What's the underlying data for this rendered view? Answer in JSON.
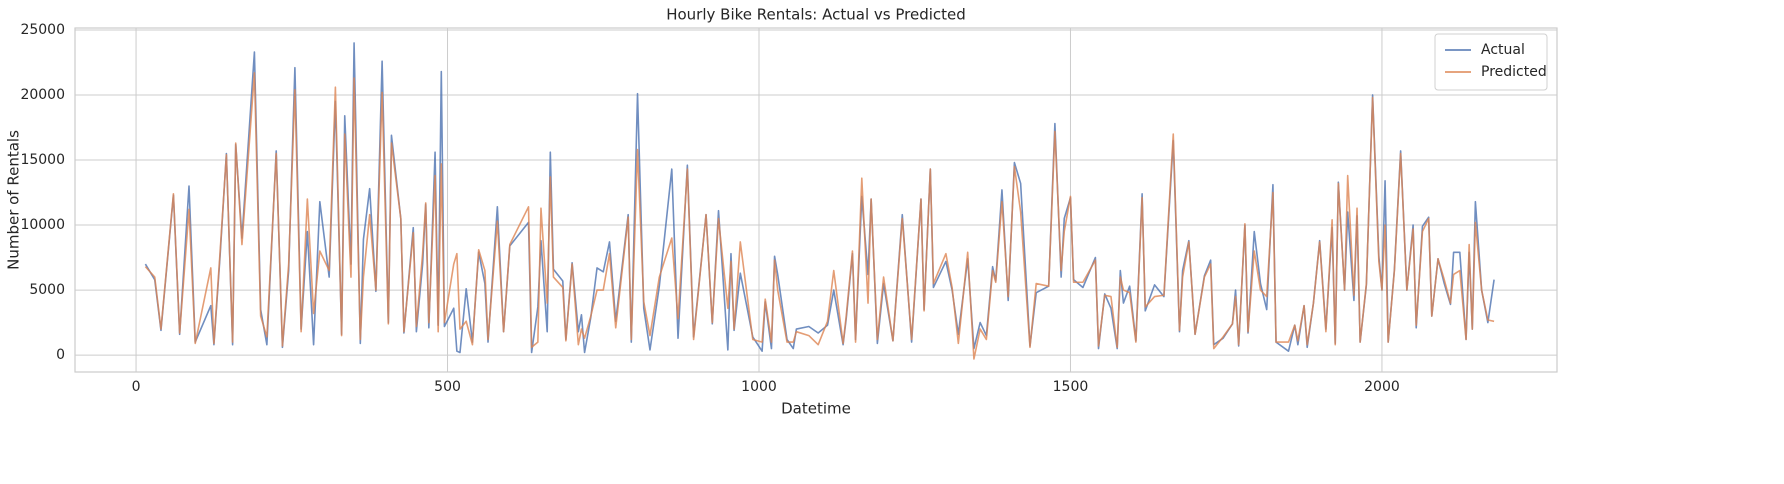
{
  "chart_data": {
    "type": "line",
    "title": "Hourly Bike Rentals: Actual vs Predicted",
    "x_label": "Datetime",
    "y_label": "Number of Rentals",
    "x": [
      15,
      30,
      40,
      60,
      70,
      85,
      95,
      120,
      125,
      135,
      145,
      155,
      160,
      170,
      190,
      200,
      210,
      225,
      235,
      245,
      255,
      265,
      275,
      285,
      295,
      310,
      320,
      330,
      335,
      345,
      350,
      360,
      365,
      375,
      385,
      395,
      405,
      410,
      425,
      430,
      445,
      450,
      460,
      465,
      470,
      480,
      485,
      490,
      495,
      510,
      515,
      520,
      530,
      540,
      550,
      560,
      565,
      580,
      590,
      600,
      630,
      635,
      645,
      650,
      660,
      665,
      670,
      685,
      690,
      700,
      710,
      715,
      720,
      730,
      740,
      750,
      760,
      770,
      790,
      795,
      805,
      815,
      825,
      840,
      860,
      870,
      885,
      895,
      915,
      925,
      935,
      950,
      955,
      960,
      970,
      990,
      1005,
      1010,
      1020,
      1025,
      1030,
      1045,
      1055,
      1060,
      1080,
      1095,
      1110,
      1120,
      1135,
      1140,
      1150,
      1155,
      1165,
      1175,
      1180,
      1190,
      1200,
      1215,
      1230,
      1245,
      1260,
      1265,
      1275,
      1280,
      1300,
      1310,
      1320,
      1335,
      1345,
      1355,
      1365,
      1375,
      1380,
      1390,
      1400,
      1410,
      1420,
      1435,
      1445,
      1465,
      1475,
      1485,
      1490,
      1500,
      1505,
      1520,
      1540,
      1545,
      1555,
      1565,
      1575,
      1580,
      1585,
      1595,
      1605,
      1615,
      1620,
      1635,
      1650,
      1665,
      1675,
      1680,
      1690,
      1700,
      1715,
      1725,
      1730,
      1745,
      1760,
      1765,
      1770,
      1780,
      1785,
      1795,
      1805,
      1815,
      1825,
      1830,
      1850,
      1860,
      1865,
      1875,
      1880,
      1890,
      1900,
      1910,
      1920,
      1925,
      1930,
      1940,
      1945,
      1955,
      1960,
      1965,
      1975,
      1985,
      1995,
      2000,
      2005,
      2010,
      2020,
      2030,
      2040,
      2050,
      2055,
      2065,
      2075,
      2080,
      2090,
      2100,
      2110,
      2115,
      2125,
      2135,
      2140,
      2145,
      2150,
      2160,
      2170,
      2180
    ],
    "series": [
      {
        "name": "Actual",
        "color": "#4c72b0",
        "values": [
          7000,
          5800,
          1900,
          12300,
          1600,
          13000,
          1000,
          3800,
          800,
          7700,
          15500,
          800,
          16200,
          9000,
          23300,
          3500,
          800,
          15700,
          600,
          6500,
          22100,
          2000,
          9500,
          800,
          11800,
          6000,
          19500,
          1600,
          18400,
          7000,
          24000,
          900,
          8900,
          12800,
          4900,
          22600,
          2500,
          16900,
          10500,
          1700,
          9800,
          1800,
          7000,
          11600,
          2100,
          15600,
          2300,
          21800,
          2200,
          3600,
          300,
          200,
          5100,
          1000,
          7900,
          5500,
          1000,
          11400,
          1800,
          8400,
          10200,
          200,
          3700,
          8800,
          1800,
          15600,
          6600,
          5700,
          1200,
          7100,
          1800,
          3100,
          200,
          2900,
          6700,
          6400,
          8700,
          2600,
          10800,
          1000,
          20100,
          3600,
          400,
          5300,
          14300,
          1300,
          14600,
          1400,
          10800,
          2400,
          11100,
          400,
          7800,
          1900,
          6300,
          1400,
          300,
          4100,
          500,
          7600,
          6200,
          1200,
          500,
          2000,
          2200,
          1700,
          2300,
          5000,
          800,
          2800,
          7800,
          1200,
          12200,
          6200,
          12000,
          900,
          5500,
          1100,
          10800,
          1000,
          12000,
          3500,
          14300,
          5200,
          7200,
          5000,
          1600,
          7400,
          500,
          2500,
          1500,
          6800,
          5700,
          12700,
          4200,
          14800,
          13200,
          700,
          4800,
          5300,
          17800,
          6000,
          10500,
          12100,
          5800,
          5200,
          7500,
          500,
          4700,
          3600,
          500,
          6500,
          4000,
          5300,
          1100,
          12400,
          3400,
          5400,
          4500,
          16500,
          1800,
          6500,
          8800,
          1600,
          6100,
          7300,
          800,
          1300,
          2400,
          5000,
          700,
          10000,
          1700,
          9500,
          5500,
          3500,
          13100,
          1000,
          300,
          2300,
          800,
          3800,
          600,
          4000,
          8800,
          2000,
          9800,
          900,
          13300,
          5000,
          11000,
          4200,
          10700,
          1000,
          5400,
          20000,
          7600,
          5000,
          13400,
          1000,
          6600,
          15700,
          5000,
          10000,
          2100,
          9900,
          10600,
          3000,
          7400,
          5500,
          3900,
          7900,
          7900,
          1200,
          7900,
          2000,
          11800,
          5000,
          2500,
          5800
        ]
      },
      {
        "name": "Predicted",
        "color": "#dd8452",
        "values": [
          6800,
          6000,
          2000,
          12400,
          1700,
          11200,
          900,
          6700,
          900,
          8000,
          15400,
          1000,
          16300,
          8500,
          21700,
          3000,
          1400,
          15500,
          700,
          7000,
          20400,
          1800,
          12000,
          3200,
          8000,
          6500,
          20600,
          1500,
          17000,
          6000,
          21300,
          1200,
          6000,
          10800,
          5000,
          20200,
          2400,
          16300,
          10500,
          1800,
          9400,
          2200,
          7800,
          11700,
          2500,
          13800,
          1800,
          14700,
          2500,
          7000,
          7800,
          2000,
          2600,
          800,
          8100,
          6500,
          1200,
          10300,
          1800,
          8500,
          11400,
          600,
          1000,
          11300,
          4000,
          13700,
          6000,
          5200,
          1100,
          7000,
          800,
          2000,
          1300,
          3000,
          5000,
          5000,
          7800,
          2100,
          10600,
          1200,
          15800,
          4100,
          1500,
          6000,
          9000,
          2800,
          14300,
          1200,
          10800,
          2500,
          10500,
          3600,
          7200,
          2000,
          8700,
          1200,
          1000,
          4300,
          1000,
          7300,
          5000,
          1000,
          1000,
          1800,
          1500,
          800,
          2600,
          6500,
          900,
          3000,
          8000,
          1000,
          13600,
          4000,
          12000,
          1200,
          6000,
          1100,
          10500,
          1200,
          12000,
          3400,
          14300,
          5500,
          7800,
          5200,
          900,
          7900,
          -300,
          2000,
          1200,
          6500,
          5600,
          11800,
          4500,
          14500,
          11000,
          600,
          5500,
          5300,
          17200,
          6500,
          9500,
          12200,
          5600,
          5600,
          7300,
          700,
          4600,
          4500,
          600,
          6000,
          5000,
          4800,
          1000,
          12100,
          3700,
          4500,
          4600,
          17000,
          1900,
          6000,
          8700,
          1600,
          6000,
          7000,
          500,
          1400,
          2400,
          4500,
          800,
          10100,
          1800,
          8000,
          5000,
          4500,
          12500,
          1000,
          1000,
          2300,
          1100,
          3800,
          800,
          4000,
          8700,
          1800,
          10400,
          800,
          13200,
          5000,
          13800,
          4600,
          11300,
          1000,
          5500,
          19800,
          7200,
          5000,
          10000,
          1000,
          6500,
          15500,
          5000,
          9700,
          2300,
          9500,
          10500,
          3000,
          7400,
          5800,
          4000,
          6200,
          6500,
          1200,
          8500,
          2000,
          10200,
          5000,
          2700,
          2600
        ]
      }
    ],
    "xlim": [
      -98,
      2281
    ],
    "ylim": [
      -1300,
      25150
    ],
    "xticks": [
      0,
      500,
      1000,
      1500,
      2000
    ],
    "yticks": [
      0,
      5000,
      10000,
      15000,
      20000,
      25000
    ],
    "grid": true,
    "legend": "upper right"
  }
}
